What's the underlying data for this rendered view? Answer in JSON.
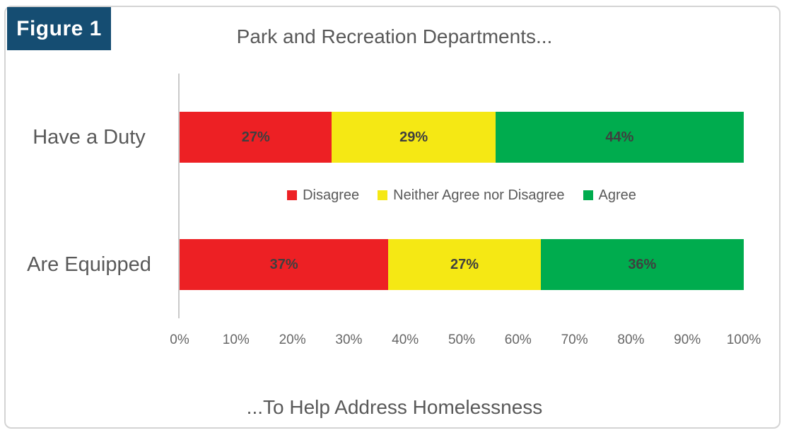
{
  "figure": {
    "label": "Figure 1"
  },
  "chart_data": {
    "type": "bar",
    "orientation": "horizontal-stacked",
    "title": "Park and Recreation Departments...",
    "xlabel": "...To Help Address Homelessness",
    "categories": [
      "Have a Duty",
      "Are Equipped"
    ],
    "series": [
      {
        "name": "Disagree",
        "color": "#ED2024",
        "values": [
          27,
          37
        ]
      },
      {
        "name": "Neither Agree nor Disagree",
        "color": "#F5E814",
        "values": [
          29,
          27
        ]
      },
      {
        "name": "Agree",
        "color": "#00AC4E",
        "values": [
          44,
          36
        ]
      }
    ],
    "value_labels": [
      [
        "27%",
        "29%",
        "44%"
      ],
      [
        "37%",
        "27%",
        "36%"
      ]
    ],
    "x_ticks": [
      "0%",
      "10%",
      "20%",
      "30%",
      "40%",
      "50%",
      "60%",
      "70%",
      "80%",
      "90%",
      "100%"
    ],
    "xlim": [
      0,
      100
    ],
    "grid": false,
    "legend_position": "between-bars"
  },
  "colors": {
    "figure_badge_bg": "#154D72",
    "figure_badge_text": "#FFFFFF",
    "title_text": "#595959",
    "data_label_text": "#3F3F3F",
    "axis_line": "#C9C9C9",
    "frame_border": "#D4D4D4"
  }
}
